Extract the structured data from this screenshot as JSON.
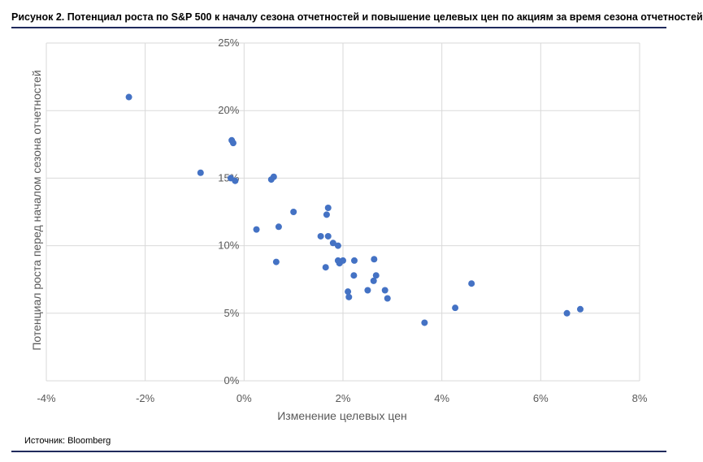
{
  "figure": {
    "title": "Рисунок 2. Потенциал роста по S&P 500 к началу сезона отчетностей и повышение целевых цен по акциям за время сезона отчетностей",
    "source": "Источник: Bloomberg",
    "accent_color": "#1f2a5c"
  },
  "chart_data": {
    "type": "scatter",
    "xlabel": "Изменение целевых цен",
    "ylabel": "Потенциал роста перед началом сезона отчетностей",
    "xlim": [
      -4,
      8
    ],
    "ylim": [
      0,
      25
    ],
    "x_ticks": [
      -4,
      -2,
      0,
      2,
      4,
      6,
      8
    ],
    "y_ticks": [
      0,
      5,
      10,
      15,
      20,
      25
    ],
    "x_tick_labels": [
      "-4%",
      "-2%",
      "0%",
      "2%",
      "4%",
      "6%",
      "8%"
    ],
    "y_tick_labels": [
      "0%",
      "5%",
      "10%",
      "15%",
      "20%",
      "25%"
    ],
    "grid": true,
    "legend": "none",
    "point_color": "#4472c4",
    "points": [
      {
        "x": -2.33,
        "y": 21.0
      },
      {
        "x": -0.88,
        "y": 15.4
      },
      {
        "x": -0.25,
        "y": 17.8
      },
      {
        "x": -0.22,
        "y": 17.6
      },
      {
        "x": -0.27,
        "y": 15.0
      },
      {
        "x": -0.18,
        "y": 14.8
      },
      {
        "x": 0.55,
        "y": 14.9
      },
      {
        "x": 0.6,
        "y": 15.1
      },
      {
        "x": 0.25,
        "y": 11.2
      },
      {
        "x": 0.7,
        "y": 11.4
      },
      {
        "x": 0.65,
        "y": 8.8
      },
      {
        "x": 1.0,
        "y": 12.5
      },
      {
        "x": 1.7,
        "y": 12.8
      },
      {
        "x": 1.67,
        "y": 12.3
      },
      {
        "x": 1.55,
        "y": 10.7
      },
      {
        "x": 1.7,
        "y": 10.7
      },
      {
        "x": 1.8,
        "y": 10.2
      },
      {
        "x": 1.9,
        "y": 10.0
      },
      {
        "x": 1.9,
        "y": 8.9
      },
      {
        "x": 1.93,
        "y": 8.7
      },
      {
        "x": 2.0,
        "y": 8.9
      },
      {
        "x": 1.65,
        "y": 8.4
      },
      {
        "x": 2.23,
        "y": 8.9
      },
      {
        "x": 2.63,
        "y": 9.0
      },
      {
        "x": 2.22,
        "y": 7.8
      },
      {
        "x": 2.67,
        "y": 7.8
      },
      {
        "x": 2.62,
        "y": 7.4
      },
      {
        "x": 2.1,
        "y": 6.6
      },
      {
        "x": 2.12,
        "y": 6.2
      },
      {
        "x": 2.5,
        "y": 6.7
      },
      {
        "x": 2.85,
        "y": 6.7
      },
      {
        "x": 2.9,
        "y": 6.1
      },
      {
        "x": 3.65,
        "y": 4.3
      },
      {
        "x": 4.27,
        "y": 5.4
      },
      {
        "x": 4.6,
        "y": 7.2
      },
      {
        "x": 6.53,
        "y": 5.0
      },
      {
        "x": 6.8,
        "y": 5.3
      }
    ]
  }
}
